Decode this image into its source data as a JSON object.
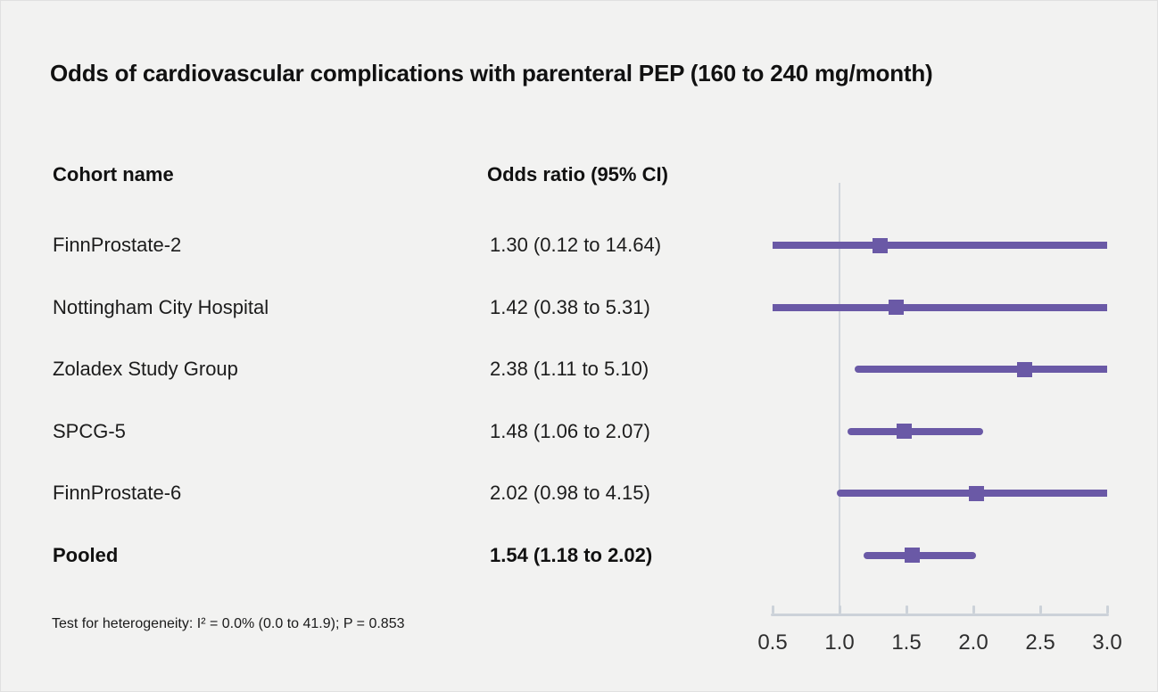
{
  "title": "Odds of cardiovascular complications with parenteral PEP (160 to 240 mg/month)",
  "table": {
    "col1_header": "Cohort name",
    "col2_header": "Odds ratio (95% CI)"
  },
  "footer": "Test for heterogeneity: I² = 0.0% (0.0 to 41.9); P = 0.853",
  "colors": {
    "background": "#f2f2f1",
    "accent_purple": "#6a59a6",
    "reference_line": "#d2d7dd",
    "axis_line": "#ccd2d9",
    "text": "#1c1c1c"
  },
  "chart_data": {
    "type": "forest",
    "title": "Odds of cardiovascular complications with parenteral PEP (160 to 240 mg/month)",
    "xlabel": "",
    "x_axis": {
      "scale": "linear",
      "min": 0.5,
      "max": 3.0,
      "ticks": [
        "0.5",
        "1.0",
        "1.5",
        "2.0",
        "2.5",
        "3.0"
      ],
      "reference_line": 1.0
    },
    "legend": null,
    "rows": [
      {
        "label": "FinnProstate-2",
        "or": 1.3,
        "ci_low": 0.12,
        "ci_high": 14.64,
        "display": "1.30 (0.12 to 14.64)",
        "bold": false
      },
      {
        "label": "Nottingham City Hospital",
        "or": 1.42,
        "ci_low": 0.38,
        "ci_high": 5.31,
        "display": "1.42 (0.38 to 5.31)",
        "bold": false
      },
      {
        "label": "Zoladex Study Group",
        "or": 2.38,
        "ci_low": 1.11,
        "ci_high": 5.1,
        "display": "2.38 (1.11 to 5.10)",
        "bold": false
      },
      {
        "label": "SPCG-5",
        "or": 1.48,
        "ci_low": 1.06,
        "ci_high": 2.07,
        "display": "1.48 (1.06 to 2.07)",
        "bold": false
      },
      {
        "label": "FinnProstate-6",
        "or": 2.02,
        "ci_low": 0.98,
        "ci_high": 4.15,
        "display": "2.02 (0.98 to 4.15)",
        "bold": false
      },
      {
        "label": "Pooled",
        "or": 1.54,
        "ci_low": 1.18,
        "ci_high": 2.02,
        "display": "1.54 (1.18 to 2.02)",
        "bold": true
      }
    ]
  }
}
